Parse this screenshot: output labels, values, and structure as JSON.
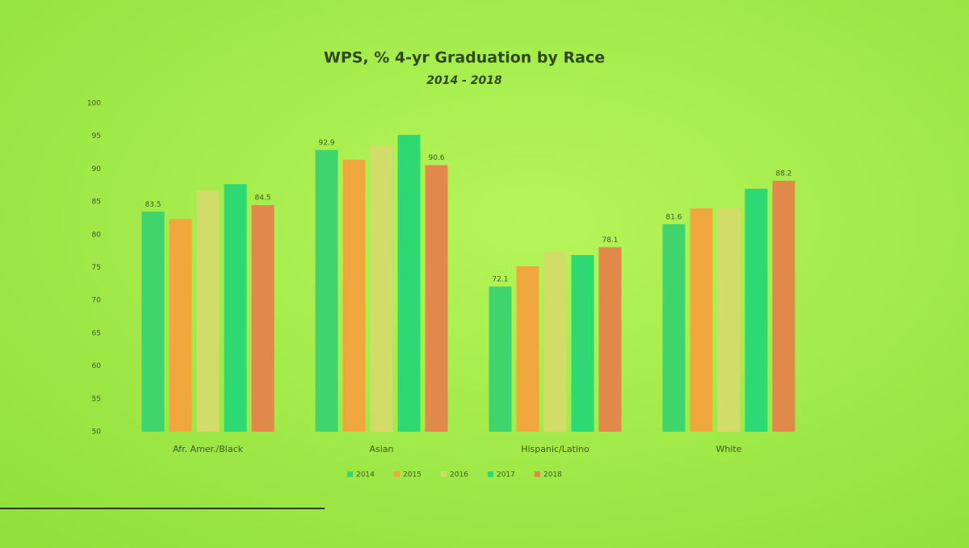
{
  "chart_data": {
    "type": "bar",
    "title": "WPS, % 4-yr Graduation by Race",
    "subtitle": "2014 - 2018",
    "categories": [
      "Afr. Amer./Black",
      "Asian",
      "Hispanic/Latino",
      "White"
    ],
    "series": [
      {
        "name": "2014",
        "color": "#3fd46c",
        "labels": true,
        "values": [
          83.5,
          92.9,
          72.1,
          81.6
        ]
      },
      {
        "name": "2015",
        "color": "#f0a83e",
        "labels": false,
        "values": [
          82.4,
          91.4,
          75.2,
          84.0
        ]
      },
      {
        "name": "2016",
        "color": "#d2dc68",
        "labels": false,
        "values": [
          86.7,
          93.6,
          77.4,
          84.0
        ]
      },
      {
        "name": "2017",
        "color": "#2ed872",
        "labels": false,
        "values": [
          87.7,
          95.2,
          76.9,
          87.0
        ]
      },
      {
        "name": "2018",
        "color": "#e0894a",
        "labels": true,
        "values": [
          84.5,
          90.6,
          78.1,
          88.2
        ]
      }
    ],
    "ylim": [
      50,
      100
    ],
    "yticks": [
      50,
      55,
      60,
      65,
      70,
      75,
      80,
      85,
      90,
      95,
      100
    ],
    "grid": false,
    "legend": "bottom"
  }
}
